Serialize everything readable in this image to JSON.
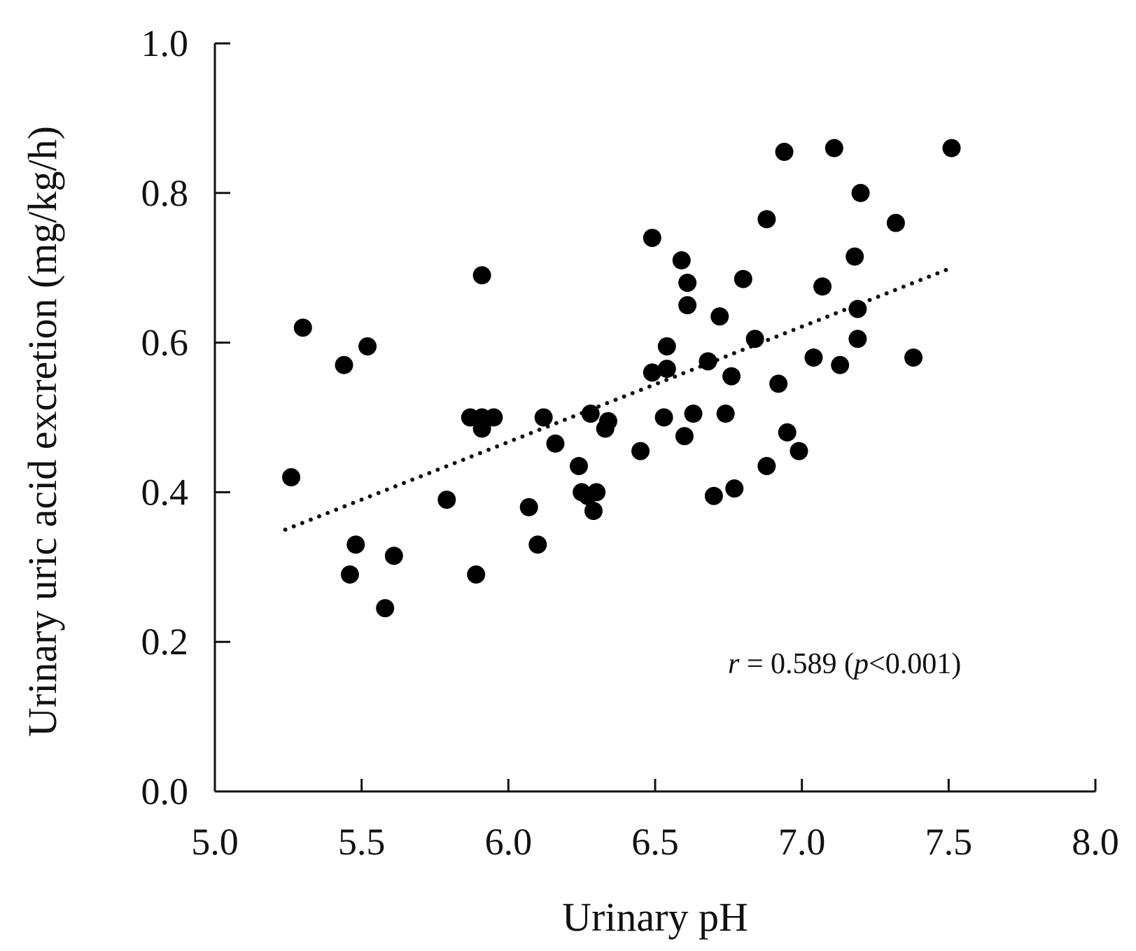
{
  "chart_data": {
    "type": "scatter",
    "title": "",
    "xlabel": "Urinary pH",
    "ylabel": "Urinary uric acid excretion (mg/kg/h)",
    "xlim": [
      5.0,
      8.0
    ],
    "ylim": [
      0.0,
      1.0
    ],
    "x_ticks": [
      "5.0",
      "5.5",
      "6.0",
      "6.5",
      "7.0",
      "7.5",
      "8.0"
    ],
    "y_ticks": [
      "0.0",
      "0.2",
      "0.4",
      "0.6",
      "0.8",
      "1.0"
    ],
    "grid": false,
    "annotation": {
      "r_symbol": "r",
      "r_text": " = 0.589 (",
      "p_symbol": "p",
      "p_text": "<0.001)"
    },
    "trendline": {
      "x": [
        5.24,
        7.51
      ],
      "y": [
        0.35,
        0.7
      ]
    },
    "points": [
      {
        "x": 5.26,
        "y": 0.42
      },
      {
        "x": 5.3,
        "y": 0.62
      },
      {
        "x": 5.44,
        "y": 0.57
      },
      {
        "x": 5.52,
        "y": 0.595
      },
      {
        "x": 5.48,
        "y": 0.33
      },
      {
        "x": 5.46,
        "y": 0.29
      },
      {
        "x": 5.61,
        "y": 0.315
      },
      {
        "x": 5.58,
        "y": 0.245
      },
      {
        "x": 5.79,
        "y": 0.39
      },
      {
        "x": 5.87,
        "y": 0.5
      },
      {
        "x": 5.91,
        "y": 0.5
      },
      {
        "x": 5.95,
        "y": 0.5
      },
      {
        "x": 5.91,
        "y": 0.485
      },
      {
        "x": 5.91,
        "y": 0.69
      },
      {
        "x": 5.89,
        "y": 0.29
      },
      {
        "x": 6.07,
        "y": 0.38
      },
      {
        "x": 6.1,
        "y": 0.33
      },
      {
        "x": 6.12,
        "y": 0.5
      },
      {
        "x": 6.16,
        "y": 0.465
      },
      {
        "x": 6.24,
        "y": 0.435
      },
      {
        "x": 6.25,
        "y": 0.4
      },
      {
        "x": 6.27,
        "y": 0.395
      },
      {
        "x": 6.3,
        "y": 0.4
      },
      {
        "x": 6.29,
        "y": 0.375
      },
      {
        "x": 6.28,
        "y": 0.505
      },
      {
        "x": 6.34,
        "y": 0.495
      },
      {
        "x": 6.33,
        "y": 0.485
      },
      {
        "x": 6.45,
        "y": 0.455
      },
      {
        "x": 6.49,
        "y": 0.74
      },
      {
        "x": 6.49,
        "y": 0.56
      },
      {
        "x": 6.54,
        "y": 0.565
      },
      {
        "x": 6.54,
        "y": 0.595
      },
      {
        "x": 6.53,
        "y": 0.5
      },
      {
        "x": 6.59,
        "y": 0.71
      },
      {
        "x": 6.61,
        "y": 0.68
      },
      {
        "x": 6.61,
        "y": 0.65
      },
      {
        "x": 6.6,
        "y": 0.475
      },
      {
        "x": 6.63,
        "y": 0.505
      },
      {
        "x": 6.68,
        "y": 0.575
      },
      {
        "x": 6.7,
        "y": 0.395
      },
      {
        "x": 6.72,
        "y": 0.635
      },
      {
        "x": 6.74,
        "y": 0.505
      },
      {
        "x": 6.76,
        "y": 0.555
      },
      {
        "x": 6.77,
        "y": 0.405
      },
      {
        "x": 6.8,
        "y": 0.685
      },
      {
        "x": 6.84,
        "y": 0.605
      },
      {
        "x": 6.88,
        "y": 0.765
      },
      {
        "x": 6.88,
        "y": 0.435
      },
      {
        "x": 6.92,
        "y": 0.545
      },
      {
        "x": 6.94,
        "y": 0.855
      },
      {
        "x": 6.95,
        "y": 0.48
      },
      {
        "x": 6.99,
        "y": 0.455
      },
      {
        "x": 7.04,
        "y": 0.58
      },
      {
        "x": 7.07,
        "y": 0.675
      },
      {
        "x": 7.11,
        "y": 0.86
      },
      {
        "x": 7.13,
        "y": 0.57
      },
      {
        "x": 7.18,
        "y": 0.715
      },
      {
        "x": 7.19,
        "y": 0.645
      },
      {
        "x": 7.19,
        "y": 0.605
      },
      {
        "x": 7.2,
        "y": 0.8
      },
      {
        "x": 7.32,
        "y": 0.76
      },
      {
        "x": 7.38,
        "y": 0.58
      },
      {
        "x": 7.51,
        "y": 0.86
      }
    ]
  }
}
